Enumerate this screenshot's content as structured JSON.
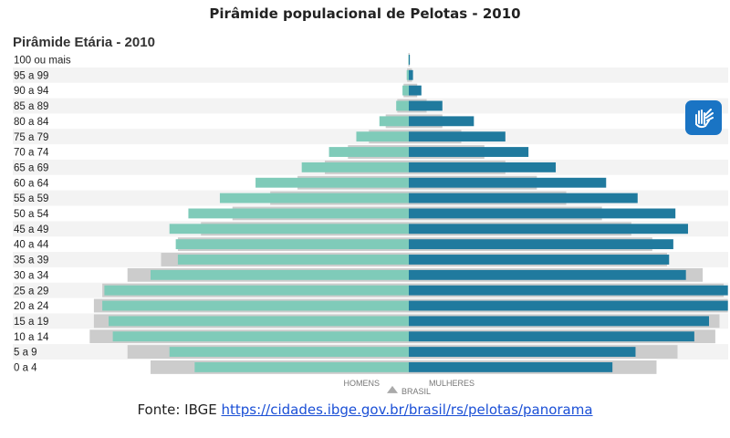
{
  "title": "Pirâmide populacional de Pelotas - 2010",
  "chart_data": {
    "type": "bar",
    "orientation": "horizontal",
    "title": "Pirâmide Etária - 2010",
    "categories": [
      "100 ou mais",
      "95 a 99",
      "90 a 94",
      "85 a 89",
      "80 a 84",
      "75 a 79",
      "70 a 74",
      "65 a 69",
      "60 a 64",
      "55 a 59",
      "50 a 54",
      "45 a 49",
      "40 a 44",
      "35 a 39",
      "30 a 34",
      "25 a 29",
      "20 a 24",
      "15 a 19",
      "10 a 14",
      "5 a 9",
      "0 a 4"
    ],
    "series": [
      {
        "name": "HOMENS",
        "side": "left",
        "color": "#7fcbb9",
        "values": [
          0.02,
          0.1,
          0.3,
          0.6,
          1.4,
          2.5,
          3.8,
          5.1,
          7.3,
          9.0,
          10.5,
          11.4,
          11.1,
          11.0,
          12.3,
          14.5,
          14.6,
          14.3,
          14.1,
          11.4,
          10.2
        ]
      },
      {
        "name": "MULHERES",
        "side": "right",
        "color": "#207a9e",
        "values": [
          0.05,
          0.2,
          0.6,
          1.6,
          3.1,
          4.6,
          5.7,
          7.0,
          9.4,
          10.9,
          12.7,
          13.3,
          12.6,
          12.4,
          13.2,
          15.2,
          15.2,
          14.3,
          13.6,
          10.8,
          9.7
        ]
      },
      {
        "name": "BRASIL",
        "color": "#cccccc",
        "male": [
          0.02,
          0.08,
          0.25,
          0.55,
          1.1,
          1.9,
          2.9,
          4.0,
          5.3,
          6.6,
          8.4,
          9.9,
          11.0,
          11.8,
          13.4,
          14.6,
          15.0,
          15.0,
          15.2,
          13.4,
          12.3
        ],
        "female": [
          0.04,
          0.15,
          0.4,
          0.85,
          1.6,
          2.5,
          3.6,
          4.6,
          6.1,
          7.5,
          9.2,
          10.6,
          11.6,
          12.3,
          14.0,
          15.0,
          15.2,
          14.8,
          14.6,
          12.8,
          11.8
        ]
      }
    ],
    "xlabel_left": "HOMENS",
    "xlabel_right": "MULHERES",
    "legend": "BRASIL",
    "max": 15.3
  },
  "source": {
    "prefix": "Fonte: IBGE ",
    "link": "https://cidades.ibge.gov.br/brasil/rs/pelotas/panorama"
  },
  "accessibility_icon": "sign-language-hands-icon"
}
